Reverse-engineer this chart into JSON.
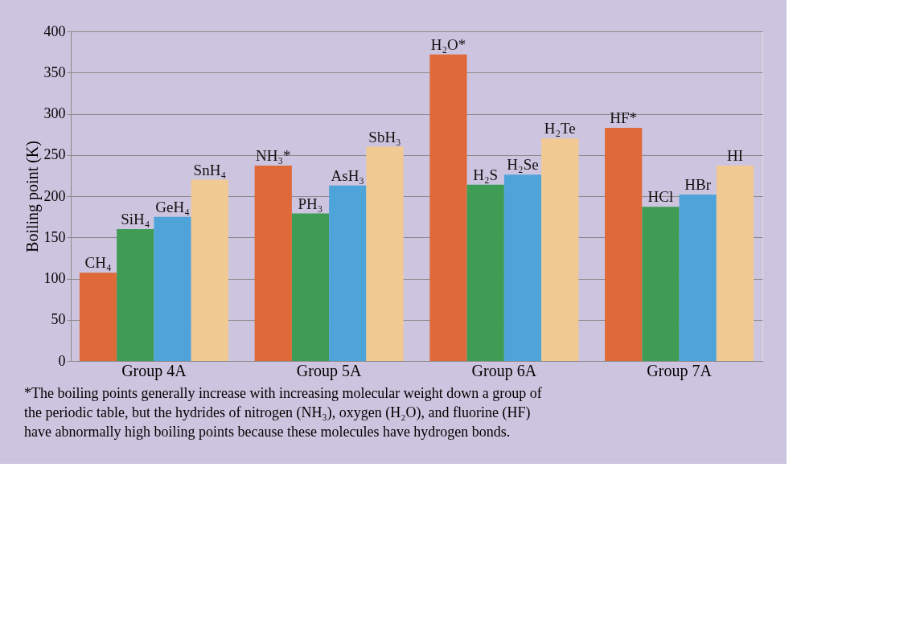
{
  "chart_data": {
    "type": "bar",
    "ylabel": "Boiling point (K)",
    "categories": [
      "Group 4A",
      "Group 5A",
      "Group 6A",
      "Group 7A"
    ],
    "series": [
      {
        "color": "#e0693a",
        "values": [
          107,
          237,
          372,
          283
        ],
        "value_labels": [
          "CH₄",
          "NH₃*",
          "H₂O*",
          "HF*"
        ]
      },
      {
        "color": "#3f9c55",
        "values": [
          160,
          179,
          214,
          187
        ],
        "value_labels": [
          "SiH₄",
          "PH₃",
          "H₂S",
          "HCl"
        ]
      },
      {
        "color": "#4ea3d9",
        "values": [
          175,
          213,
          226,
          202
        ],
        "value_labels": [
          "GeH₄",
          "AsH₃",
          "H₂Se",
          "HBr"
        ]
      },
      {
        "color": "#f1c992",
        "values": [
          220,
          260,
          270,
          237
        ],
        "value_labels": [
          "SnH₄",
          "SbH₃",
          "H₂Te",
          "HI"
        ]
      }
    ],
    "ylim": [
      0,
      400
    ],
    "yticks": [
      0,
      50,
      100,
      150,
      200,
      250,
      300,
      350,
      400
    ],
    "grid": "y",
    "legend": false,
    "annotations": [
      "*The boiling points generally increase with increasing molecular weight down a group of the periodic table, but the hydrides of nitrogen (NH₃), oxygen (H₂O), and fluorine (HF) have abnormally high boiling points because these molecules have hydrogen bonds."
    ]
  }
}
